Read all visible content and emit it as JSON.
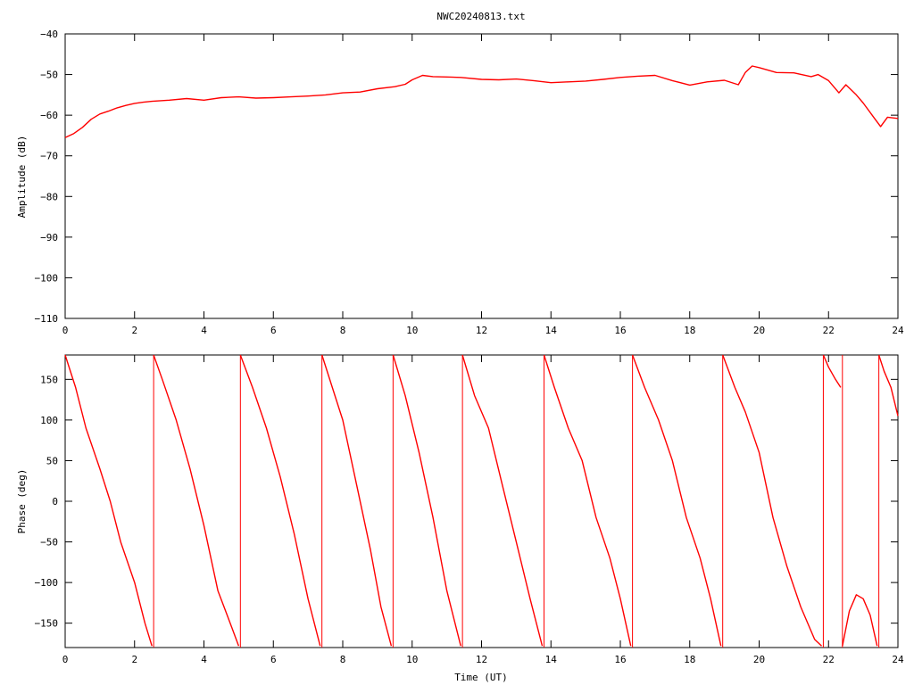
{
  "chart_data": [
    {
      "type": "line",
      "title": "NWC20240813.txt",
      "xlabel": "",
      "ylabel": "Amplitude (dB)",
      "xlim": [
        0,
        24
      ],
      "ylim": [
        -110,
        -40
      ],
      "x_ticks": [
        "0",
        "2",
        "4",
        "6",
        "8",
        "10",
        "12",
        "14",
        "16",
        "18",
        "20",
        "22",
        "24"
      ],
      "y_ticks": [
        "−40",
        "−50",
        "−60",
        "−70",
        "−80",
        "−90",
        "−100",
        "−110"
      ],
      "grid": false,
      "series": [
        {
          "color": "#ff0000",
          "x": [
            0,
            0.25,
            0.5,
            0.75,
            1.0,
            1.25,
            1.5,
            1.75,
            2.0,
            2.25,
            2.5,
            3.0,
            3.5,
            4.0,
            4.5,
            5.0,
            5.5,
            6.0,
            6.5,
            7.0,
            7.5,
            8.0,
            8.5,
            9.0,
            9.5,
            9.8,
            10.0,
            10.3,
            10.6,
            11.0,
            11.4,
            12.0,
            12.5,
            13.0,
            13.5,
            14.0,
            14.5,
            15.0,
            15.5,
            16.0,
            16.5,
            17.0,
            17.5,
            18.0,
            18.5,
            19.0,
            19.4,
            19.6,
            19.8,
            20.0,
            20.5,
            21.0,
            21.5,
            21.7,
            22.0,
            22.3,
            22.5,
            22.8,
            23.0,
            23.3,
            23.5,
            23.7,
            24.0
          ],
          "y": [
            -65.5,
            -64.5,
            -63,
            -61,
            -59.7,
            -59,
            -58.2,
            -57.6,
            -57.1,
            -56.8,
            -56.6,
            -56.3,
            -55.9,
            -56.3,
            -55.7,
            -55.5,
            -55.8,
            -55.7,
            -55.5,
            -55.3,
            -55.0,
            -54.5,
            -54.3,
            -53.5,
            -53.0,
            -52.4,
            -51.3,
            -50.2,
            -50.5,
            -50.6,
            -50.7,
            -51.2,
            -51.3,
            -51.1,
            -51.5,
            -52.0,
            -51.8,
            -51.6,
            -51.2,
            -50.7,
            -50.4,
            -50.2,
            -51.5,
            -52.6,
            -51.8,
            -51.4,
            -52.5,
            -49.5,
            -47.9,
            -48.3,
            -49.5,
            -49.6,
            -50.5,
            -50.0,
            -51.5,
            -54.5,
            -52.5,
            -55.0,
            -57.0,
            -60.5,
            -62.8,
            -60.5,
            -60.8
          ]
        }
      ]
    },
    {
      "type": "line",
      "title": "",
      "xlabel": "Time (UT)",
      "ylabel": "Phase (deg)",
      "xlim": [
        0,
        24
      ],
      "ylim": [
        -180,
        180
      ],
      "x_ticks": [
        "0",
        "2",
        "4",
        "6",
        "8",
        "10",
        "12",
        "14",
        "16",
        "18",
        "20",
        "22",
        "24"
      ],
      "y_ticks": [
        "150",
        "100",
        "50",
        "0",
        "−50",
        "−100",
        "−150"
      ],
      "grid": false,
      "series": [
        {
          "color": "#ff0000",
          "segments": [
            {
              "x": [
                0.0,
                0.3,
                0.6,
                1.0,
                1.3,
                1.6,
                2.0,
                2.3,
                2.5
              ],
              "y": [
                180,
                140,
                90,
                40,
                0,
                -50,
                -100,
                -150,
                -178
              ]
            },
            {
              "x": [
                2.55,
                2.8,
                3.2,
                3.6,
                4.0,
                4.4,
                4.8,
                5.0
              ],
              "y": [
                180,
                150,
                100,
                40,
                -30,
                -110,
                -155,
                -178
              ]
            },
            {
              "x": [
                5.05,
                5.4,
                5.8,
                6.2,
                6.6,
                7.0,
                7.35
              ],
              "y": [
                180,
                140,
                90,
                30,
                -40,
                -120,
                -178
              ]
            },
            {
              "x": [
                7.4,
                7.7,
                8.0,
                8.4,
                8.8,
                9.1,
                9.4
              ],
              "y": [
                180,
                140,
                100,
                20,
                -60,
                -130,
                -178
              ]
            },
            {
              "x": [
                9.45,
                9.8,
                10.2,
                10.6,
                11.0,
                11.4
              ],
              "y": [
                180,
                130,
                60,
                -20,
                -110,
                -178
              ]
            },
            {
              "x": [
                11.45,
                11.8,
                12.2,
                12.6,
                13.0,
                13.4,
                13.75
              ],
              "y": [
                180,
                130,
                90,
                20,
                -50,
                -120,
                -178
              ]
            },
            {
              "x": [
                13.8,
                14.1,
                14.5,
                14.9,
                15.3,
                15.7,
                16.0,
                16.3
              ],
              "y": [
                180,
                140,
                90,
                50,
                -20,
                -70,
                -120,
                -178
              ]
            },
            {
              "x": [
                16.35,
                16.7,
                17.1,
                17.5,
                17.9,
                18.3,
                18.6,
                18.9
              ],
              "y": [
                180,
                140,
                100,
                50,
                -20,
                -70,
                -120,
                -178
              ]
            },
            {
              "x": [
                18.95,
                19.3,
                19.6,
                20.0,
                20.4,
                20.8,
                21.2,
                21.6,
                21.8
              ],
              "y": [
                180,
                140,
                110,
                60,
                -20,
                -80,
                -130,
                -170,
                -178
              ]
            },
            {
              "x": [
                21.85,
                22.0,
                22.2,
                22.35
              ],
              "y": [
                180,
                165,
                150,
                140
              ]
            },
            {
              "x": [
                22.4,
                22.6,
                22.8,
                23.0,
                23.2,
                23.4
              ],
              "y": [
                -178,
                -135,
                -115,
                -120,
                -140,
                -178
              ]
            },
            {
              "x": [
                23.45,
                23.6,
                23.8,
                24.0
              ],
              "y": [
                180,
                160,
                140,
                105
              ]
            }
          ],
          "wraps_x": [
            2.55,
            5.05,
            7.4,
            9.45,
            11.45,
            13.8,
            16.35,
            18.95,
            21.85,
            22.4,
            23.45
          ]
        }
      ]
    }
  ]
}
